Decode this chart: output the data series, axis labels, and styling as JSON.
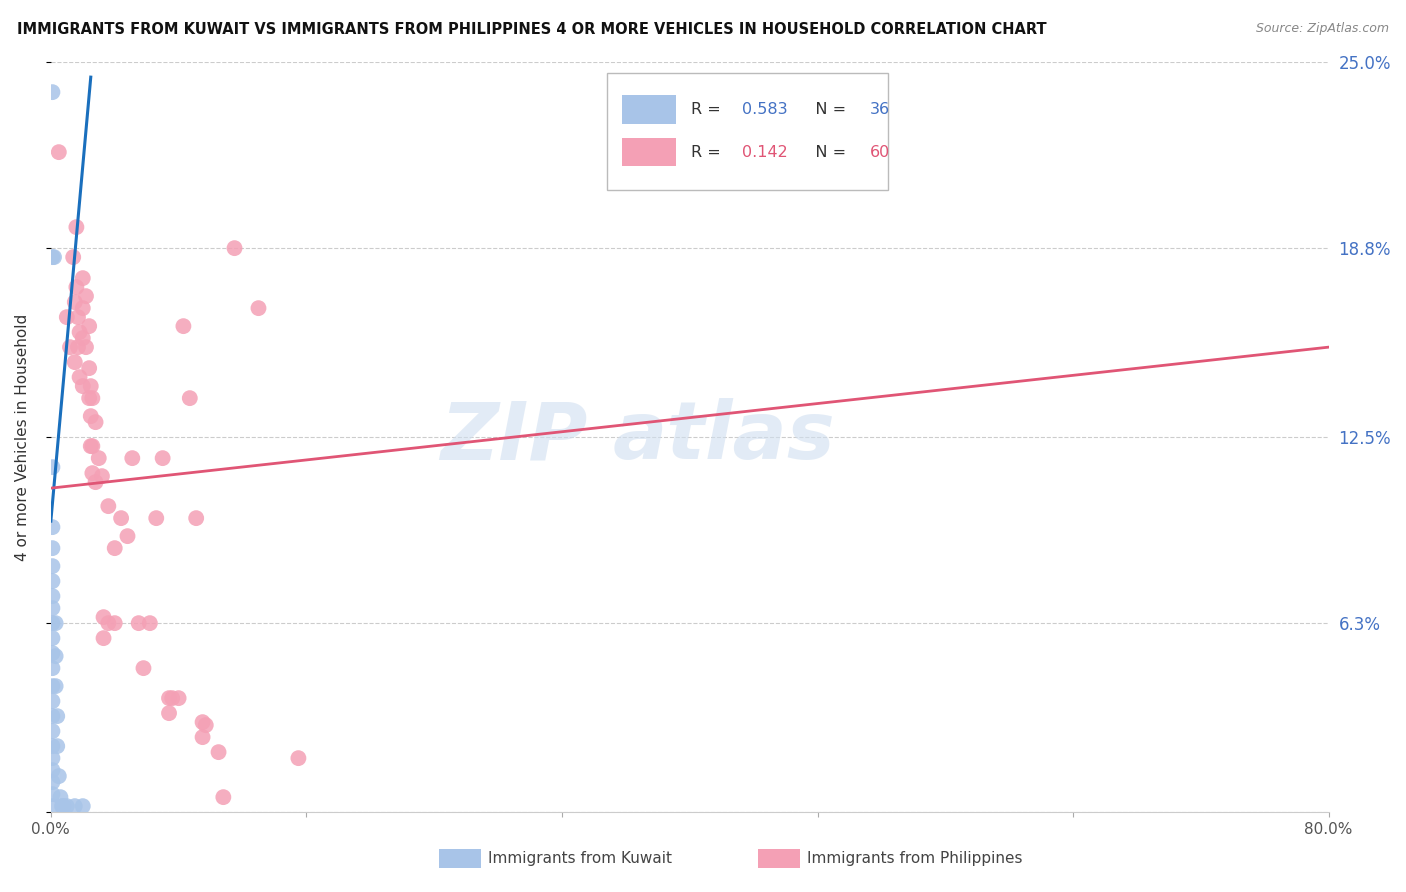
{
  "title": "IMMIGRANTS FROM KUWAIT VS IMMIGRANTS FROM PHILIPPINES 4 OR MORE VEHICLES IN HOUSEHOLD CORRELATION CHART",
  "source": "Source: ZipAtlas.com",
  "ylabel": "4 or more Vehicles in Household",
  "kuwait_R": 0.583,
  "kuwait_N": 36,
  "phil_R": 0.142,
  "phil_N": 60,
  "kuwait_color": "#a8c4e8",
  "phil_color": "#f4a0b5",
  "kuwait_line_color": "#1a6fbd",
  "phil_line_color": "#e05575",
  "kuwait_line": {
    "x0": 0.0,
    "y0": 0.097,
    "x1": 0.025,
    "y1": 0.245
  },
  "phil_line": {
    "x0": 0.0,
    "y0": 0.108,
    "x1": 0.8,
    "y1": 0.155
  },
  "kuwait_scatter": [
    [
      0.001,
      0.24
    ],
    [
      0.002,
      0.185
    ],
    [
      0.001,
      0.185
    ],
    [
      0.001,
      0.115
    ],
    [
      0.001,
      0.095
    ],
    [
      0.001,
      0.088
    ],
    [
      0.001,
      0.082
    ],
    [
      0.001,
      0.077
    ],
    [
      0.001,
      0.072
    ],
    [
      0.001,
      0.068
    ],
    [
      0.001,
      0.063
    ],
    [
      0.001,
      0.058
    ],
    [
      0.001,
      0.053
    ],
    [
      0.001,
      0.048
    ],
    [
      0.001,
      0.042
    ],
    [
      0.001,
      0.037
    ],
    [
      0.001,
      0.032
    ],
    [
      0.001,
      0.027
    ],
    [
      0.001,
      0.022
    ],
    [
      0.001,
      0.018
    ],
    [
      0.001,
      0.014
    ],
    [
      0.001,
      0.01
    ],
    [
      0.001,
      0.006
    ],
    [
      0.001,
      0.002
    ],
    [
      0.003,
      0.063
    ],
    [
      0.003,
      0.052
    ],
    [
      0.003,
      0.042
    ],
    [
      0.004,
      0.032
    ],
    [
      0.004,
      0.022
    ],
    [
      0.005,
      0.012
    ],
    [
      0.006,
      0.005
    ],
    [
      0.007,
      0.002
    ],
    [
      0.008,
      0.002
    ],
    [
      0.01,
      0.002
    ],
    [
      0.015,
      0.002
    ],
    [
      0.02,
      0.002
    ]
  ],
  "phil_scatter": [
    [
      0.005,
      0.22
    ],
    [
      0.01,
      0.165
    ],
    [
      0.012,
      0.155
    ],
    [
      0.014,
      0.185
    ],
    [
      0.015,
      0.17
    ],
    [
      0.015,
      0.15
    ],
    [
      0.016,
      0.195
    ],
    [
      0.016,
      0.175
    ],
    [
      0.017,
      0.165
    ],
    [
      0.017,
      0.155
    ],
    [
      0.018,
      0.16
    ],
    [
      0.018,
      0.145
    ],
    [
      0.02,
      0.178
    ],
    [
      0.02,
      0.168
    ],
    [
      0.02,
      0.158
    ],
    [
      0.02,
      0.142
    ],
    [
      0.022,
      0.172
    ],
    [
      0.022,
      0.155
    ],
    [
      0.024,
      0.162
    ],
    [
      0.024,
      0.148
    ],
    [
      0.024,
      0.138
    ],
    [
      0.025,
      0.142
    ],
    [
      0.025,
      0.132
    ],
    [
      0.025,
      0.122
    ],
    [
      0.026,
      0.138
    ],
    [
      0.026,
      0.122
    ],
    [
      0.026,
      0.113
    ],
    [
      0.028,
      0.13
    ],
    [
      0.028,
      0.11
    ],
    [
      0.03,
      0.118
    ],
    [
      0.032,
      0.112
    ],
    [
      0.033,
      0.065
    ],
    [
      0.033,
      0.058
    ],
    [
      0.036,
      0.102
    ],
    [
      0.036,
      0.063
    ],
    [
      0.04,
      0.088
    ],
    [
      0.04,
      0.063
    ],
    [
      0.044,
      0.098
    ],
    [
      0.048,
      0.092
    ],
    [
      0.051,
      0.118
    ],
    [
      0.055,
      0.063
    ],
    [
      0.058,
      0.048
    ],
    [
      0.062,
      0.063
    ],
    [
      0.066,
      0.098
    ],
    [
      0.07,
      0.118
    ],
    [
      0.074,
      0.038
    ],
    [
      0.074,
      0.033
    ],
    [
      0.076,
      0.038
    ],
    [
      0.08,
      0.038
    ],
    [
      0.083,
      0.162
    ],
    [
      0.087,
      0.138
    ],
    [
      0.091,
      0.098
    ],
    [
      0.095,
      0.03
    ],
    [
      0.095,
      0.025
    ],
    [
      0.097,
      0.029
    ],
    [
      0.105,
      0.02
    ],
    [
      0.108,
      0.005
    ],
    [
      0.115,
      0.188
    ],
    [
      0.13,
      0.168
    ],
    [
      0.155,
      0.018
    ]
  ],
  "watermark_text": "ZIP",
  "watermark_text2": "atlas",
  "background_color": "#ffffff",
  "xlim": [
    0.0,
    0.8
  ],
  "ylim": [
    0.0,
    0.25
  ],
  "yticks": [
    0.0,
    0.063,
    0.125,
    0.188,
    0.25
  ],
  "ytick_labels": [
    "",
    "6.3%",
    "12.5%",
    "18.8%",
    "25.0%"
  ],
  "xtick_labels": [
    "0.0%",
    "",
    "",
    "",
    "",
    "80.0%"
  ],
  "xticks": [
    0.0,
    0.16,
    0.32,
    0.48,
    0.64,
    0.8
  ]
}
